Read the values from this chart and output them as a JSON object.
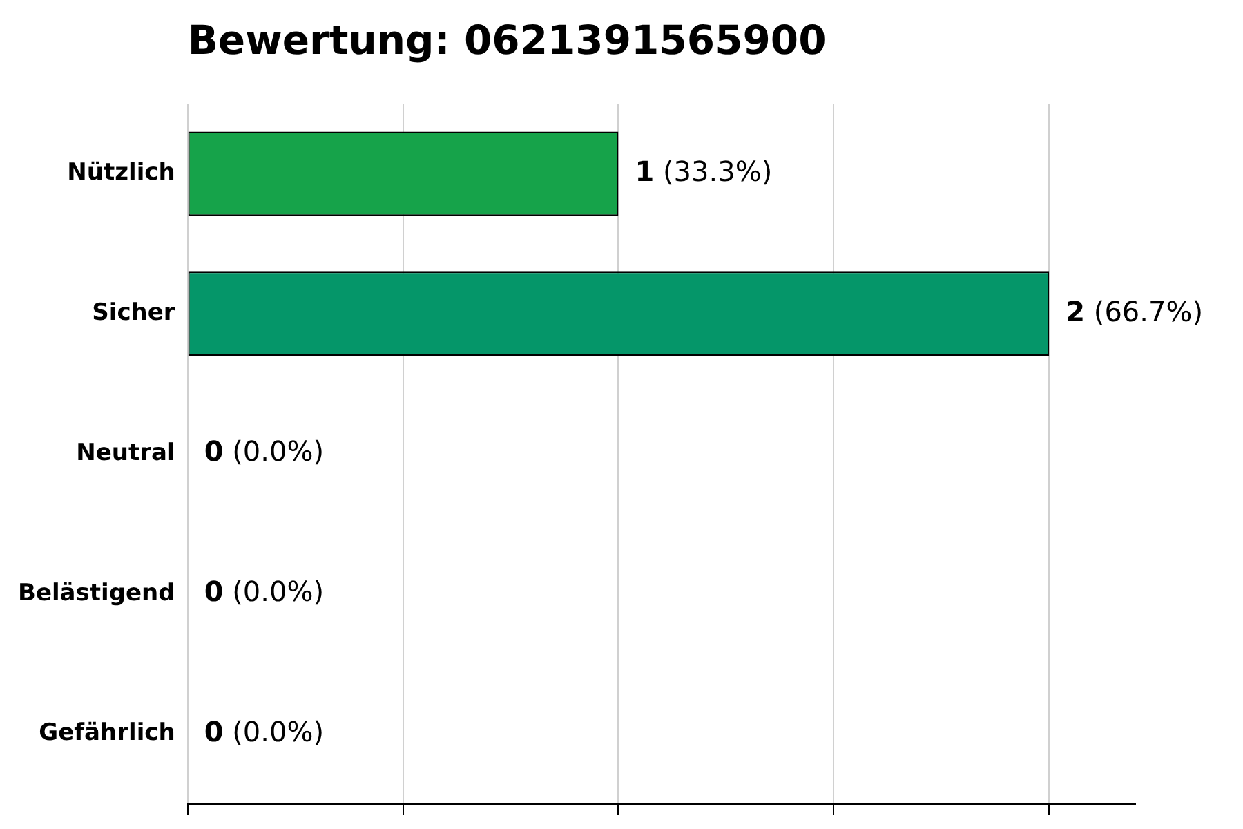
{
  "chart_data": {
    "type": "bar",
    "orientation": "horizontal",
    "title": "Bewertung: 0621391565900",
    "categories": [
      "Nützlich",
      "Sicher",
      "Neutral",
      "Belästigend",
      "Gefährlich"
    ],
    "values": [
      1,
      2,
      0,
      0,
      0
    ],
    "colors": [
      "#16a34a",
      "#059669",
      "#6b7280",
      "#f59e0b",
      "#dc2626"
    ],
    "value_labels": [
      "1 (33.3%)",
      "2 (66.7%)",
      "0 (0.0%)",
      "0 (0.0%)",
      "0 (0.0%)"
    ],
    "xlim": [
      0,
      2.2
    ],
    "xticks": [
      {
        "value": 0,
        "label": null
      },
      {
        "value": 0.5,
        "label": null
      },
      {
        "value": 1,
        "label": null
      },
      {
        "value": 1.5,
        "label": null
      },
      {
        "value": 2,
        "label": null
      }
    ],
    "tick_labels": "y",
    "grid": "x",
    "legend": false
  }
}
